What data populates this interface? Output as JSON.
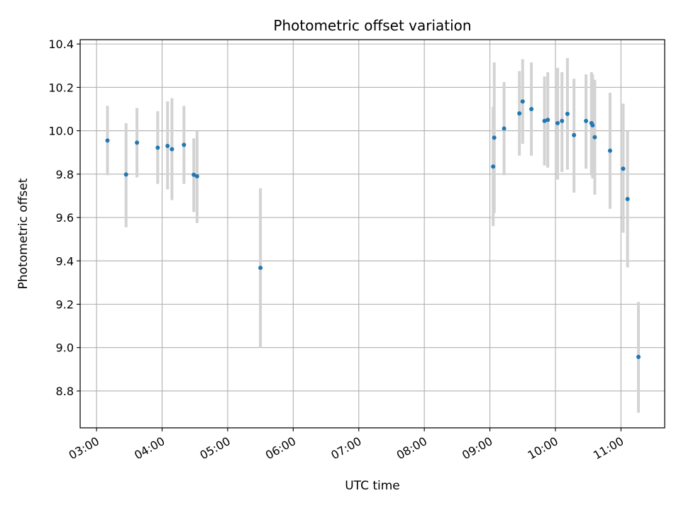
{
  "chart_data": {
    "type": "scatter",
    "title": "Photometric offset variation",
    "xlabel": "UTC time",
    "ylabel": "Photometric offset",
    "x_ticks": [
      "03:00",
      "04:00",
      "05:00",
      "06:00",
      "07:00",
      "08:00",
      "09:00",
      "10:00",
      "11:00"
    ],
    "y_ticks": [
      "8.8",
      "9.0",
      "9.2",
      "9.4",
      "9.6",
      "9.8",
      "10.0",
      "10.2",
      "10.4"
    ],
    "xlim": [
      "02:45",
      "11:40"
    ],
    "ylim": [
      8.63,
      10.42
    ],
    "grid": true,
    "point_color": "#1f77b4",
    "errorbar_color": "#d3d3d3",
    "points": [
      {
        "t": "03:10",
        "y": 9.955,
        "lo": 9.795,
        "hi": 10.115
      },
      {
        "t": "03:27",
        "y": 9.798,
        "lo": 9.555,
        "hi": 10.035
      },
      {
        "t": "03:37",
        "y": 9.945,
        "lo": 9.785,
        "hi": 10.105
      },
      {
        "t": "03:56",
        "y": 9.922,
        "lo": 9.755,
        "hi": 10.09
      },
      {
        "t": "04:05",
        "y": 9.93,
        "lo": 9.73,
        "hi": 10.135
      },
      {
        "t": "04:09",
        "y": 9.915,
        "lo": 9.68,
        "hi": 10.15
      },
      {
        "t": "04:20",
        "y": 9.935,
        "lo": 9.755,
        "hi": 10.115
      },
      {
        "t": "04:29",
        "y": 9.797,
        "lo": 9.625,
        "hi": 9.965
      },
      {
        "t": "04:32",
        "y": 9.79,
        "lo": 9.575,
        "hi": 10.0
      },
      {
        "t": "05:30",
        "y": 9.368,
        "lo": 9.0,
        "hi": 9.735
      },
      {
        "t": "09:03",
        "y": 9.835,
        "lo": 9.56,
        "hi": 10.11
      },
      {
        "t": "09:04",
        "y": 9.968,
        "lo": 9.62,
        "hi": 10.315
      },
      {
        "t": "09:13",
        "y": 10.01,
        "lo": 9.795,
        "hi": 10.225
      },
      {
        "t": "09:27",
        "y": 10.08,
        "lo": 9.885,
        "hi": 10.275
      },
      {
        "t": "09:30",
        "y": 10.135,
        "lo": 9.94,
        "hi": 10.33
      },
      {
        "t": "09:38",
        "y": 10.1,
        "lo": 9.885,
        "hi": 10.315
      },
      {
        "t": "09:50",
        "y": 10.045,
        "lo": 9.84,
        "hi": 10.25
      },
      {
        "t": "09:53",
        "y": 10.05,
        "lo": 9.83,
        "hi": 10.27
      },
      {
        "t": "10:02",
        "y": 10.035,
        "lo": 9.775,
        "hi": 10.29
      },
      {
        "t": "10:06",
        "y": 10.045,
        "lo": 9.81,
        "hi": 10.27
      },
      {
        "t": "10:11",
        "y": 10.078,
        "lo": 9.82,
        "hi": 10.335
      },
      {
        "t": "10:17",
        "y": 9.98,
        "lo": 9.715,
        "hi": 10.24
      },
      {
        "t": "10:28",
        "y": 10.045,
        "lo": 9.825,
        "hi": 10.26
      },
      {
        "t": "10:33",
        "y": 10.035,
        "lo": 9.795,
        "hi": 10.27
      },
      {
        "t": "10:34",
        "y": 10.025,
        "lo": 9.78,
        "hi": 10.26
      },
      {
        "t": "10:36",
        "y": 9.97,
        "lo": 9.705,
        "hi": 10.235
      },
      {
        "t": "10:50",
        "y": 9.908,
        "lo": 9.64,
        "hi": 10.175
      },
      {
        "t": "11:02",
        "y": 9.825,
        "lo": 9.53,
        "hi": 10.125
      },
      {
        "t": "11:06",
        "y": 9.685,
        "lo": 9.37,
        "hi": 10.0
      },
      {
        "t": "11:16",
        "y": 8.957,
        "lo": 8.7,
        "hi": 9.21
      }
    ]
  }
}
